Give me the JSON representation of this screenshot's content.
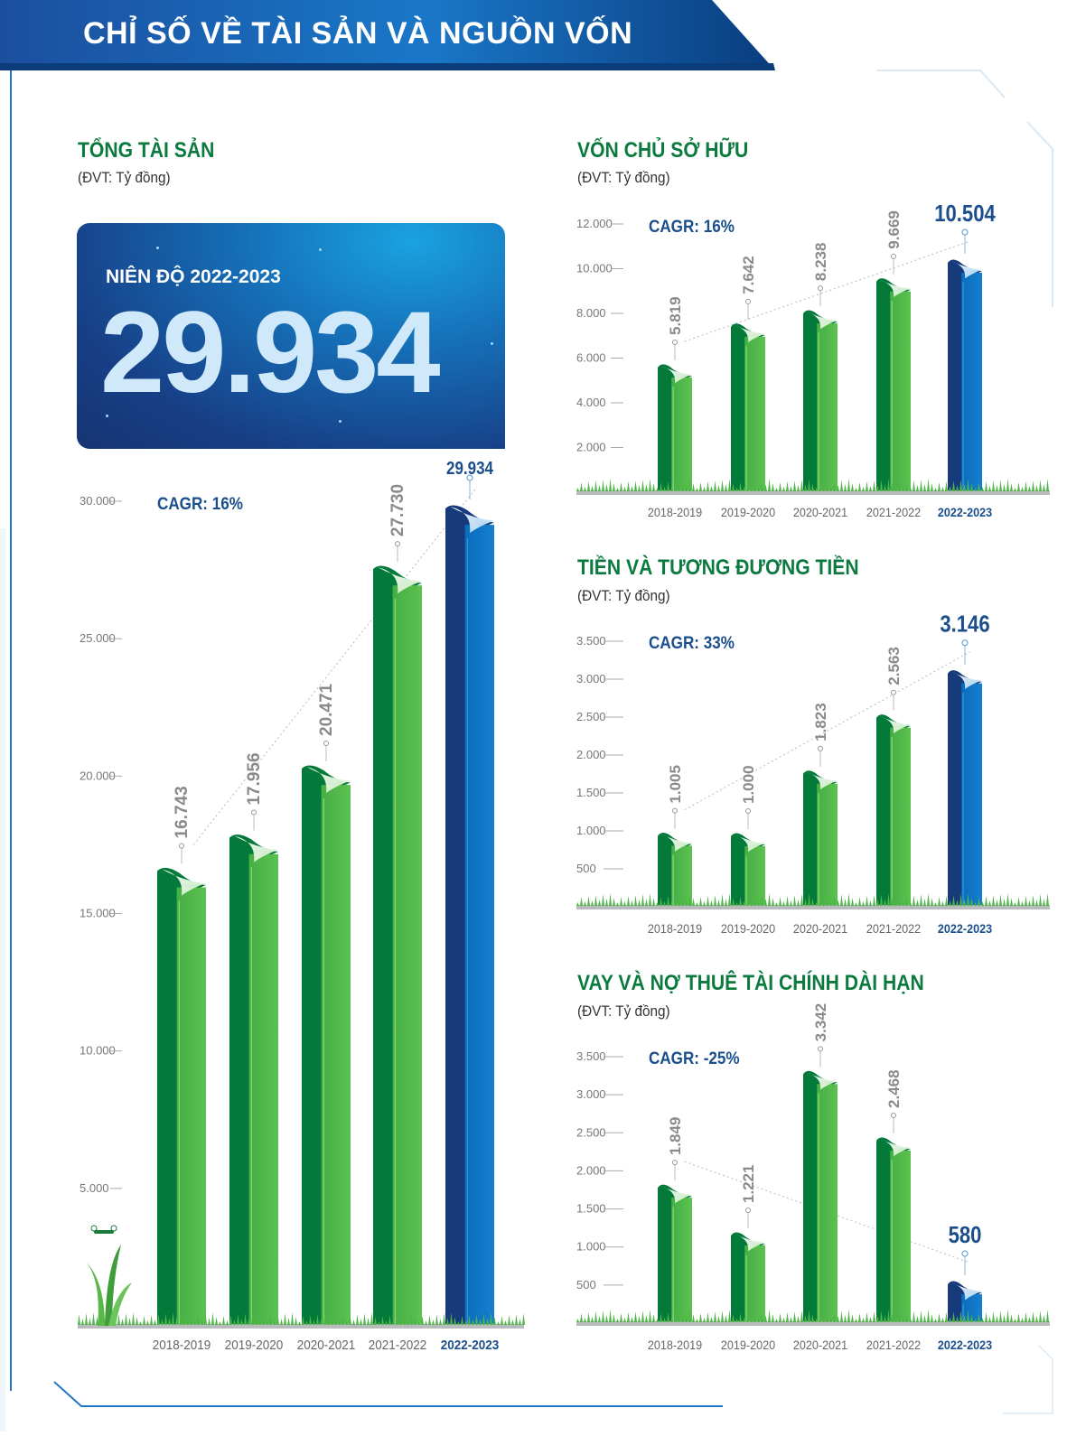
{
  "header": {
    "title": "CHỈ SỐ VỀ TÀI SẢN VÀ NGUỒN VỐN"
  },
  "hero": {
    "label": "NIÊN ĐỘ 2022-2023",
    "value": "29.934"
  },
  "colors": {
    "green_dark": "#037a3a",
    "green_light": "#51b848",
    "blue_dark": "#163a7a",
    "blue_light": "#0e73c4",
    "title_green": "#0a7a3e",
    "cagr_blue": "#1a4e8c"
  },
  "chart_data": [
    {
      "type": "bar",
      "title": "TỔNG TÀI SẢN",
      "unit": "(ĐVT: Tỷ đồng)",
      "cagr": "CAGR: 16%",
      "categories": [
        "2018-2019",
        "2019-2020",
        "2020-2021",
        "2021-2022",
        "2022-2023"
      ],
      "values": [
        16743,
        17956,
        20471,
        27730,
        29934
      ],
      "value_labels": [
        "16.743",
        "17.956",
        "20.471",
        "27.730",
        "29.934"
      ],
      "y_ticks": [
        5000,
        10000,
        15000,
        20000,
        25000,
        30000
      ],
      "y_tick_labels": [
        "5.000",
        "10.000",
        "15.000",
        "20.000",
        "25.000",
        "30.000"
      ],
      "ylim": [
        0,
        30000
      ],
      "highlight_index": 4
    },
    {
      "type": "bar",
      "title": "VỐN CHỦ SỞ HỮU",
      "unit": "(ĐVT: Tỷ đồng)",
      "cagr": "CAGR: 16%",
      "categories": [
        "2018-2019",
        "2019-2020",
        "2020-2021",
        "2021-2022",
        "2022-2023"
      ],
      "values": [
        5819,
        7642,
        8238,
        9669,
        10504
      ],
      "value_labels": [
        "5.819",
        "7.642",
        "8.238",
        "9.669",
        "10.504"
      ],
      "y_ticks": [
        2000,
        4000,
        6000,
        8000,
        10000,
        12000
      ],
      "y_tick_labels": [
        "2.000",
        "4.000",
        "6.000",
        "8.000",
        "10.000",
        "12.000"
      ],
      "ylim": [
        0,
        12000
      ],
      "highlight_index": 4
    },
    {
      "type": "bar",
      "title": "TIỀN VÀ TƯƠNG ĐƯƠNG TIỀN",
      "unit": "(ĐVT: Tỷ đồng)",
      "cagr": "CAGR: 33%",
      "categories": [
        "2018-2019",
        "2019-2020",
        "2020-2021",
        "2021-2022",
        "2022-2023"
      ],
      "values": [
        1005,
        1000,
        1823,
        2563,
        3146
      ],
      "value_labels": [
        "1.005",
        "1.000",
        "1.823",
        "2.563",
        "3.146"
      ],
      "y_ticks": [
        500,
        1000,
        1500,
        2000,
        2500,
        3000,
        3500
      ],
      "y_tick_labels": [
        "500",
        "1.000",
        "1.500",
        "2.000",
        "2.500",
        "3.000",
        "3.500"
      ],
      "ylim": [
        0,
        3500
      ],
      "highlight_index": 4
    },
    {
      "type": "bar",
      "title": "VAY VÀ NỢ THUÊ TÀI CHÍNH DÀI HẠN",
      "unit": "(ĐVT: Tỷ đồng)",
      "cagr": "CAGR: -25%",
      "categories": [
        "2018-2019",
        "2019-2020",
        "2020-2021",
        "2021-2022",
        "2022-2023"
      ],
      "values": [
        1849,
        1221,
        3342,
        2468,
        580
      ],
      "value_labels": [
        "1.849",
        "1.221",
        "3.342",
        "2.468",
        "580"
      ],
      "y_ticks": [
        500,
        1000,
        1500,
        2000,
        2500,
        3000,
        3500
      ],
      "y_tick_labels": [
        "500",
        "1.000",
        "1.500",
        "2.000",
        "2.500",
        "3.000",
        "3.500"
      ],
      "ylim": [
        0,
        3500
      ],
      "highlight_index": 4
    }
  ]
}
